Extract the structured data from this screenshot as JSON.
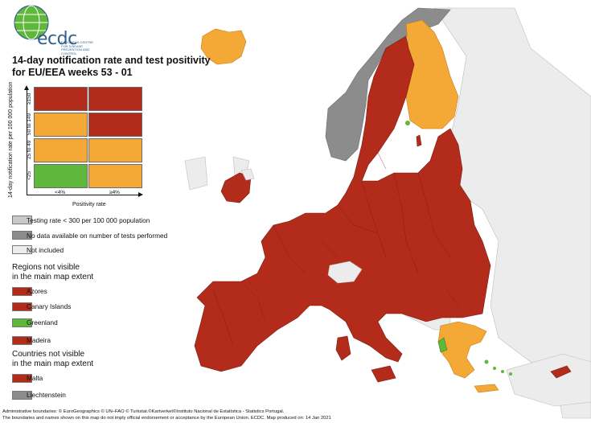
{
  "logo": {
    "text": "ecdc",
    "subtitle": "EUROPEAN CENTRE FOR DISEASE PREVENTION AND CONTROL"
  },
  "title_line1": "14-day notification rate and test positivity",
  "title_line2": "for EU/EEA weeks 53 - 01",
  "matrix": {
    "y_label": "14-day notification rate per 100 000 population",
    "x_label": "Positivity rate",
    "y_ticks": [
      "≥150",
      "50 to 149",
      "25 to 49",
      "<25"
    ],
    "x_ticks": [
      "<4%",
      "≥4%"
    ],
    "cells": [
      [
        "#b22b1b",
        "#b22b1b"
      ],
      [
        "#f4a835",
        "#b22b1b"
      ],
      [
        "#f4a835",
        "#f4a835"
      ],
      [
        "#5fb83b",
        "#f4a835"
      ]
    ]
  },
  "legend_top": [
    {
      "label": "Testing rate < 300 per 100 000 population",
      "color": "#c8c8c8"
    },
    {
      "label": "No data available on number of tests performed",
      "color": "#8c8c8c"
    },
    {
      "label": "Not included",
      "color": "#ececec"
    }
  ],
  "regions_heading_1": "Regions not visible",
  "regions_heading_2": "in the main map extent",
  "regions": [
    {
      "label": "Azores",
      "color": "#b22b1b"
    },
    {
      "label": "Canary Islands",
      "color": "#b22b1b"
    },
    {
      "label": "Greenland",
      "color": "#5fb83b"
    },
    {
      "label": "Madeira",
      "color": "#b22b1b"
    }
  ],
  "countries_heading_1": "Countries not visible",
  "countries_heading_2": "in the main map extent",
  "countries": [
    {
      "label": "Malta",
      "color": "#b22b1b"
    },
    {
      "label": "Liechtenstein",
      "color": "#8c8c8c"
    }
  ],
  "footer_line1": "Administrative boundaries: © EuroGeographics © UN–FAO © Turkstat.©Kartverket©Instituto Nacional de Estatística - Statistics Portugal.",
  "footer_line2": "The boundaries and names shown on this map do not imply official endorsement or acceptance by the European Union. ECDC. Map produced on: 14 Jan 2021",
  "colors": {
    "dark_red": "#b22b1b",
    "orange": "#f4a835",
    "green": "#5fb83b",
    "grey": "#8c8c8c",
    "light_grey": "#c8c8c8",
    "not_included": "#ececec"
  }
}
